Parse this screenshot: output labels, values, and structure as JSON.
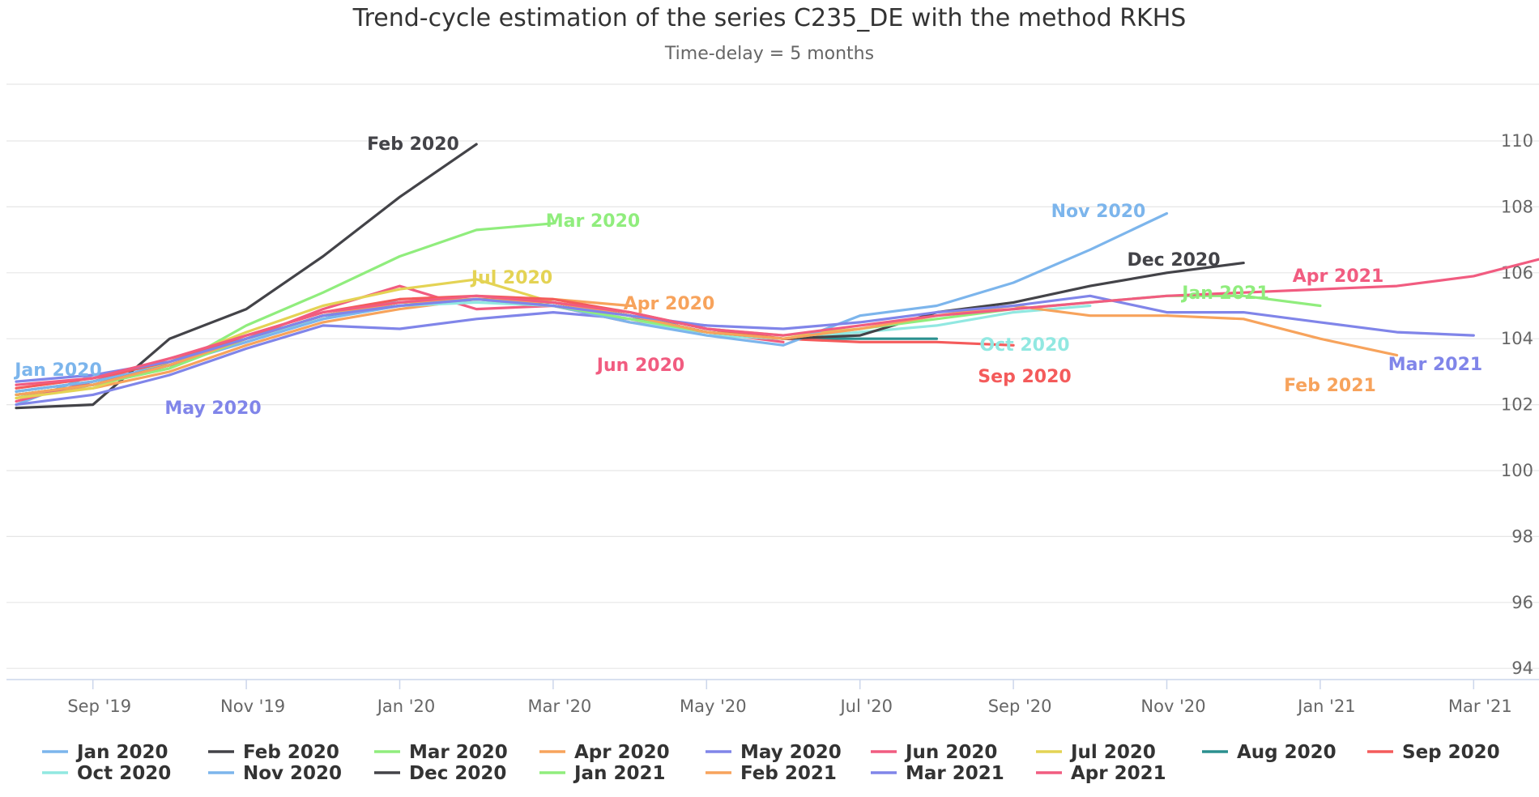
{
  "chart_data": {
    "type": "line",
    "title": "Trend-cycle estimation of the series C235_DE with the method RKHS",
    "subtitle": "Time-delay = 5 months",
    "x_tick_labels": [
      "Sep '19",
      "Nov '19",
      "Jan '20",
      "Mar '20",
      "May '20",
      "Jul '20",
      "Sep '20",
      "Nov '20",
      "Jan '21",
      "Mar '21"
    ],
    "ylim": [
      93,
      112
    ],
    "y_ticks": [
      94,
      96,
      98,
      100,
      102,
      104,
      106,
      108,
      110
    ],
    "grid": true,
    "legend": "bottom",
    "series": [
      {
        "name": "Jan 2020",
        "color": "#7cb5ec",
        "label": "Jan 2020",
        "x": [
          "2019-08",
          "2019-09",
          "2019-10",
          "2019-11",
          "2019-12",
          "2020-01"
        ],
        "y": [
          102.0,
          102.9,
          103.2,
          103.9,
          104.6,
          105.2
        ]
      },
      {
        "name": "Feb 2020",
        "color": "#434348",
        "label": "Feb 2020",
        "x": [
          "2019-08",
          "2019-09",
          "2019-10",
          "2019-11",
          "2019-12",
          "2020-01",
          "2020-02"
        ],
        "y": [
          101.9,
          102.0,
          104.0,
          104.9,
          106.5,
          108.3,
          109.9
        ]
      },
      {
        "name": "Mar 2020",
        "color": "#90ed7d",
        "label": "Mar 2020",
        "x": [
          "2019-08",
          "2019-09",
          "2019-10",
          "2019-11",
          "2019-12",
          "2020-01",
          "2020-02",
          "2020-03"
        ],
        "y": [
          102.2,
          102.6,
          103.1,
          104.4,
          105.4,
          106.5,
          107.3,
          107.5
        ]
      },
      {
        "name": "Apr 2020",
        "color": "#f7a35c",
        "label": "Apr 2020",
        "x": [
          "2019-08",
          "2019-09",
          "2019-10",
          "2019-11",
          "2019-12",
          "2020-01",
          "2020-02",
          "2020-03",
          "2020-04"
        ],
        "y": [
          102.3,
          102.5,
          103.0,
          103.8,
          104.5,
          104.9,
          105.2,
          105.2,
          105.0
        ]
      },
      {
        "name": "May 2020",
        "color": "#8085e9",
        "label": "May 2020",
        "x": [
          "2019-08",
          "2019-09",
          "2019-10",
          "2019-11",
          "2019-12",
          "2020-01",
          "2020-02",
          "2020-03",
          "2020-04",
          "2020-05"
        ],
        "y": [
          102.0,
          102.3,
          102.9,
          103.7,
          104.4,
          104.3,
          104.6,
          104.8,
          104.6,
          104.4
        ]
      },
      {
        "name": "Jun 2020",
        "color": "#f15c80",
        "label": "Jun 2020",
        "x": [
          "2019-08",
          "2019-09",
          "2019-10",
          "2019-11",
          "2019-12",
          "2020-01",
          "2020-02",
          "2020-03",
          "2020-04",
          "2020-05",
          "2020-06"
        ],
        "y": [
          102.1,
          102.7,
          103.4,
          104.0,
          104.9,
          105.6,
          104.9,
          105.0,
          104.5,
          104.2,
          103.9
        ]
      },
      {
        "name": "Jul 2020",
        "color": "#e4d354",
        "label": "Jul 2020",
        "x": [
          "2019-08",
          "2019-09",
          "2019-10",
          "2019-11",
          "2019-12",
          "2020-01",
          "2020-02",
          "2020-03",
          "2020-04",
          "2020-05",
          "2020-06",
          "2020-07"
        ],
        "y": [
          102.2,
          102.5,
          103.3,
          104.2,
          105.0,
          105.5,
          105.8,
          105.1,
          104.8,
          104.3,
          104.1,
          104.3
        ]
      },
      {
        "name": "Aug 2020",
        "color": "#2b908f",
        "label": null,
        "x": [
          "2019-08",
          "2019-09",
          "2019-10",
          "2019-11",
          "2019-12",
          "2020-01",
          "2020-02",
          "2020-03",
          "2020-04",
          "2020-05",
          "2020-06",
          "2020-07",
          "2020-08"
        ],
        "y": [
          102.4,
          102.7,
          103.2,
          104.0,
          104.7,
          105.0,
          105.2,
          105.1,
          104.7,
          104.2,
          104.0,
          104.0,
          104.0
        ]
      },
      {
        "name": "Sep 2020",
        "color": "#f45b5b",
        "label": "Sep 2020",
        "x": [
          "2019-08",
          "2019-09",
          "2019-10",
          "2019-11",
          "2019-12",
          "2020-01",
          "2020-02",
          "2020-03",
          "2020-04",
          "2020-05",
          "2020-06",
          "2020-07",
          "2020-08",
          "2020-09"
        ],
        "y": [
          102.5,
          102.8,
          103.3,
          104.1,
          104.8,
          105.2,
          105.3,
          105.2,
          104.8,
          104.3,
          104.0,
          103.9,
          103.9,
          103.8
        ]
      },
      {
        "name": "Oct 2020",
        "color": "#91e8e1",
        "label": "Oct 2020",
        "x": [
          "2019-08",
          "2019-09",
          "2019-10",
          "2019-11",
          "2019-12",
          "2020-01",
          "2020-02",
          "2020-03",
          "2020-04",
          "2020-05",
          "2020-06",
          "2020-07",
          "2020-08",
          "2020-09",
          "2020-10"
        ],
        "y": [
          102.3,
          102.6,
          103.2,
          104.0,
          104.6,
          105.0,
          105.1,
          105.0,
          104.6,
          104.1,
          104.0,
          104.2,
          104.4,
          104.8,
          105.0
        ]
      },
      {
        "name": "Nov 2020",
        "color": "#7cb5ec",
        "label": "Nov 2020",
        "x": [
          "2019-08",
          "2019-09",
          "2019-10",
          "2019-11",
          "2019-12",
          "2020-01",
          "2020-02",
          "2020-03",
          "2020-04",
          "2020-05",
          "2020-06",
          "2020-07",
          "2020-08",
          "2020-09",
          "2020-10",
          "2020-11"
        ],
        "y": [
          102.4,
          102.7,
          103.2,
          103.9,
          104.6,
          105.0,
          105.2,
          105.0,
          104.5,
          104.1,
          103.8,
          104.7,
          105.0,
          105.7,
          106.7,
          107.8
        ]
      },
      {
        "name": "Dec 2020",
        "color": "#434348",
        "label": "Dec 2020",
        "x": [
          "2019-08",
          "2019-09",
          "2019-10",
          "2019-11",
          "2019-12",
          "2020-01",
          "2020-02",
          "2020-03",
          "2020-04",
          "2020-05",
          "2020-06",
          "2020-07",
          "2020-08",
          "2020-09",
          "2020-10",
          "2020-11",
          "2020-12"
        ],
        "y": [
          102.3,
          102.6,
          103.2,
          104.0,
          104.7,
          105.1,
          105.2,
          105.1,
          104.7,
          104.2,
          104.0,
          104.1,
          104.8,
          105.1,
          105.6,
          106.0,
          106.3
        ]
      },
      {
        "name": "Jan 2021",
        "color": "#90ed7d",
        "label": "Jan 2021",
        "x": [
          "2019-08",
          "2019-09",
          "2019-10",
          "2019-11",
          "2019-12",
          "2020-01",
          "2020-02",
          "2020-03",
          "2020-04",
          "2020-05",
          "2020-06",
          "2020-07",
          "2020-08",
          "2020-09",
          "2020-10",
          "2020-11",
          "2020-12",
          "2021-01"
        ],
        "y": [
          102.3,
          102.6,
          103.1,
          104.0,
          104.7,
          105.1,
          105.2,
          105.0,
          104.6,
          104.2,
          104.0,
          104.3,
          104.6,
          104.9,
          105.1,
          105.3,
          105.3,
          105.0
        ]
      },
      {
        "name": "Feb 2021",
        "color": "#f7a35c",
        "label": "Feb 2021",
        "x": [
          "2019-08",
          "2019-09",
          "2019-10",
          "2019-11",
          "2019-12",
          "2020-01",
          "2020-02",
          "2020-03",
          "2020-04",
          "2020-05",
          "2020-06",
          "2020-07",
          "2020-08",
          "2020-09",
          "2020-10",
          "2020-11",
          "2020-12",
          "2021-01",
          "2021-02"
        ],
        "y": [
          102.3,
          102.6,
          103.2,
          104.0,
          104.7,
          105.1,
          105.2,
          105.1,
          104.7,
          104.2,
          104.0,
          104.3,
          104.7,
          105.0,
          104.7,
          104.7,
          104.6,
          104.0,
          103.5
        ]
      },
      {
        "name": "Mar 2021",
        "color": "#8085e9",
        "label": "Mar 2021",
        "x": [
          "2019-08",
          "2019-09",
          "2019-10",
          "2019-11",
          "2019-12",
          "2020-01",
          "2020-02",
          "2020-03",
          "2020-04",
          "2020-05",
          "2020-06",
          "2020-07",
          "2020-08",
          "2020-09",
          "2020-10",
          "2020-11",
          "2020-12",
          "2021-01",
          "2021-02",
          "2021-03"
        ],
        "y": [
          102.7,
          102.9,
          103.3,
          104.0,
          104.7,
          105.0,
          105.2,
          105.0,
          104.7,
          104.4,
          104.3,
          104.5,
          104.8,
          105.0,
          105.3,
          104.8,
          104.8,
          104.5,
          104.2,
          104.1
        ]
      },
      {
        "name": "Apr 2021",
        "color": "#f15c80",
        "label": "Apr 2021",
        "x": [
          "2019-08",
          "2019-09",
          "2019-10",
          "2019-11",
          "2019-12",
          "2020-01",
          "2020-02",
          "2020-03",
          "2020-04",
          "2020-05",
          "2020-06",
          "2020-07",
          "2020-08",
          "2020-09",
          "2020-10",
          "2020-11",
          "2020-12",
          "2021-01",
          "2021-02",
          "2021-03",
          "2021-04"
        ],
        "y": [
          102.6,
          102.8,
          103.4,
          104.1,
          104.8,
          105.1,
          105.3,
          105.1,
          104.8,
          104.3,
          104.1,
          104.4,
          104.7,
          104.9,
          105.1,
          105.3,
          105.4,
          105.5,
          105.6,
          105.9,
          106.5
        ]
      }
    ]
  }
}
